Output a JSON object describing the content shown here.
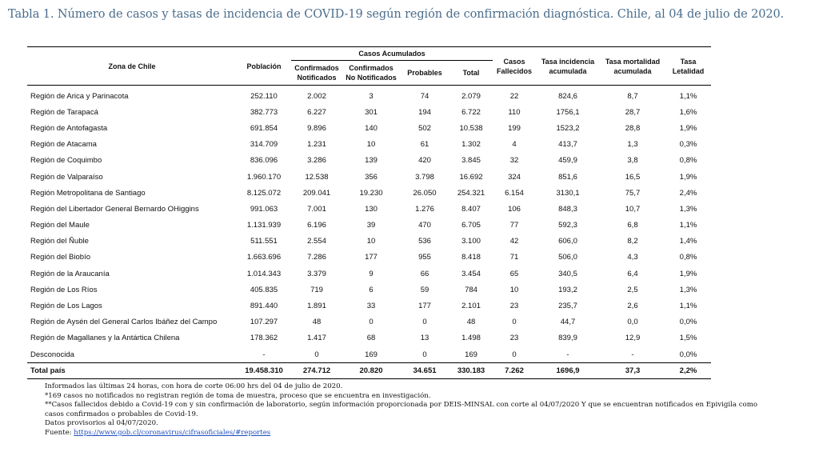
{
  "title": "Tabla 1. Número de casos y tasas de incidencia de COVID-19 según región de confirmación diagnóstica. Chile, al 04 de julio de 2020.",
  "headers": {
    "zona": "Zona de Chile",
    "poblacion": "Población",
    "casos_acumulados": "Casos Acumulados",
    "confirmados_notificados": "Confirmados Notificados",
    "confirmados_no_notificados": "Confirmados No Notificados",
    "probables": "Probables",
    "total": "Total",
    "fallecidos": "Casos Fallecidos",
    "incidencia": "Tasa incidencia acumulada",
    "mortalidad": "Tasa mortalidad acumulada",
    "letalidad": "Tasa Letalidad"
  },
  "rows": [
    {
      "zona": "Región de Arica y Parinacota",
      "poblacion": "252.110",
      "conf_notif": "2.002",
      "conf_no_notif": "3",
      "probables": "74",
      "total": "2.079",
      "fallecidos": "22",
      "incidencia": "824,6",
      "mortalidad": "8,7",
      "letalidad": "1,1%"
    },
    {
      "zona": "Región de Tarapacá",
      "poblacion": "382.773",
      "conf_notif": "6.227",
      "conf_no_notif": "301",
      "probables": "194",
      "total": "6.722",
      "fallecidos": "110",
      "incidencia": "1756,1",
      "mortalidad": "28,7",
      "letalidad": "1,6%"
    },
    {
      "zona": "Región de Antofagasta",
      "poblacion": "691.854",
      "conf_notif": "9.896",
      "conf_no_notif": "140",
      "probables": "502",
      "total": "10.538",
      "fallecidos": "199",
      "incidencia": "1523,2",
      "mortalidad": "28,8",
      "letalidad": "1,9%"
    },
    {
      "zona": "Región de Atacama",
      "poblacion": "314.709",
      "conf_notif": "1.231",
      "conf_no_notif": "10",
      "probables": "61",
      "total": "1.302",
      "fallecidos": "4",
      "incidencia": "413,7",
      "mortalidad": "1,3",
      "letalidad": "0,3%"
    },
    {
      "zona": "Región de Coquimbo",
      "poblacion": "836.096",
      "conf_notif": "3.286",
      "conf_no_notif": "139",
      "probables": "420",
      "total": "3.845",
      "fallecidos": "32",
      "incidencia": "459,9",
      "mortalidad": "3,8",
      "letalidad": "0,8%"
    },
    {
      "zona": "Región de Valparaíso",
      "poblacion": "1.960.170",
      "conf_notif": "12.538",
      "conf_no_notif": "356",
      "probables": "3.798",
      "total": "16.692",
      "fallecidos": "324",
      "incidencia": "851,6",
      "mortalidad": "16,5",
      "letalidad": "1,9%"
    },
    {
      "zona": "Región Metropolitana de Santiago",
      "poblacion": "8.125.072",
      "conf_notif": "209.041",
      "conf_no_notif": "19.230",
      "probables": "26.050",
      "total": "254.321",
      "fallecidos": "6.154",
      "incidencia": "3130,1",
      "mortalidad": "75,7",
      "letalidad": "2,4%"
    },
    {
      "zona": "Región del Libertador General Bernardo OHiggins",
      "poblacion": "991.063",
      "conf_notif": "7.001",
      "conf_no_notif": "130",
      "probables": "1.276",
      "total": "8.407",
      "fallecidos": "106",
      "incidencia": "848,3",
      "mortalidad": "10,7",
      "letalidad": "1,3%"
    },
    {
      "zona": "Región del Maule",
      "poblacion": "1.131.939",
      "conf_notif": "6.196",
      "conf_no_notif": "39",
      "probables": "470",
      "total": "6.705",
      "fallecidos": "77",
      "incidencia": "592,3",
      "mortalidad": "6,8",
      "letalidad": "1,1%"
    },
    {
      "zona": "Región del Ñuble",
      "poblacion": "511.551",
      "conf_notif": "2.554",
      "conf_no_notif": "10",
      "probables": "536",
      "total": "3.100",
      "fallecidos": "42",
      "incidencia": "606,0",
      "mortalidad": "8,2",
      "letalidad": "1,4%"
    },
    {
      "zona": "Región del Biobío",
      "poblacion": "1.663.696",
      "conf_notif": "7.286",
      "conf_no_notif": "177",
      "probables": "955",
      "total": "8.418",
      "fallecidos": "71",
      "incidencia": "506,0",
      "mortalidad": "4,3",
      "letalidad": "0,8%"
    },
    {
      "zona": "Región de la Araucanía",
      "poblacion": "1.014.343",
      "conf_notif": "3.379",
      "conf_no_notif": "9",
      "probables": "66",
      "total": "3.454",
      "fallecidos": "65",
      "incidencia": "340,5",
      "mortalidad": "6,4",
      "letalidad": "1,9%"
    },
    {
      "zona": "Región de Los Ríos",
      "poblacion": "405.835",
      "conf_notif": "719",
      "conf_no_notif": "6",
      "probables": "59",
      "total": "784",
      "fallecidos": "10",
      "incidencia": "193,2",
      "mortalidad": "2,5",
      "letalidad": "1,3%"
    },
    {
      "zona": "Región de Los Lagos",
      "poblacion": "891.440",
      "conf_notif": "1.891",
      "conf_no_notif": "33",
      "probables": "177",
      "total": "2.101",
      "fallecidos": "23",
      "incidencia": "235,7",
      "mortalidad": "2,6",
      "letalidad": "1,1%"
    },
    {
      "zona": "Región de Aysén del General Carlos Ibáñez del Campo",
      "poblacion": "107.297",
      "conf_notif": "48",
      "conf_no_notif": "0",
      "probables": "0",
      "total": "48",
      "fallecidos": "0",
      "incidencia": "44,7",
      "mortalidad": "0,0",
      "letalidad": "0,0%"
    },
    {
      "zona": "Región de Magallanes y la Antártica Chilena",
      "poblacion": "178.362",
      "conf_notif": "1.417",
      "conf_no_notif": "68",
      "probables": "13",
      "total": "1.498",
      "fallecidos": "23",
      "incidencia": "839,9",
      "mortalidad": "12,9",
      "letalidad": "1,5%"
    },
    {
      "zona": "Desconocida",
      "poblacion": "-",
      "conf_notif": "0",
      "conf_no_notif": "169",
      "probables": "0",
      "total": "169",
      "fallecidos": "0",
      "incidencia": "-",
      "mortalidad": "-",
      "letalidad": "0,0%"
    }
  ],
  "total": {
    "zona": "Total país",
    "poblacion": "19.458.310",
    "conf_notif": "274.712",
    "conf_no_notif": "20.820",
    "probables": "34.651",
    "total": "330.183",
    "fallecidos": "7.262",
    "incidencia": "1696,9",
    "mortalidad": "37,3",
    "letalidad": "2,2%"
  },
  "notes": {
    "line1": "Informados las últimas 24 horas, con hora de corte 06:00 hrs del 04 de julio de 2020.",
    "line2": "*169 casos no notificados no registran región de toma de muestra, proceso que se encuentra en investigación.",
    "line3": "**Casos fallecidos debido a Covid-19 con y sin confirmación de laboratorio, según información proporcionada por DEIS-MINSAL con corte al 04/07/2020 Y que se encuentran notificados en Epivigila como",
    "line4": "casos confirmados o probables de Covid-19.",
    "line5": "Datos provisorios al 04/07/2020.",
    "fuente_label": "Fuente: ",
    "fuente_link": "https://www.gob.cl/coronavirus/cifrasoficiales/#reportes"
  }
}
